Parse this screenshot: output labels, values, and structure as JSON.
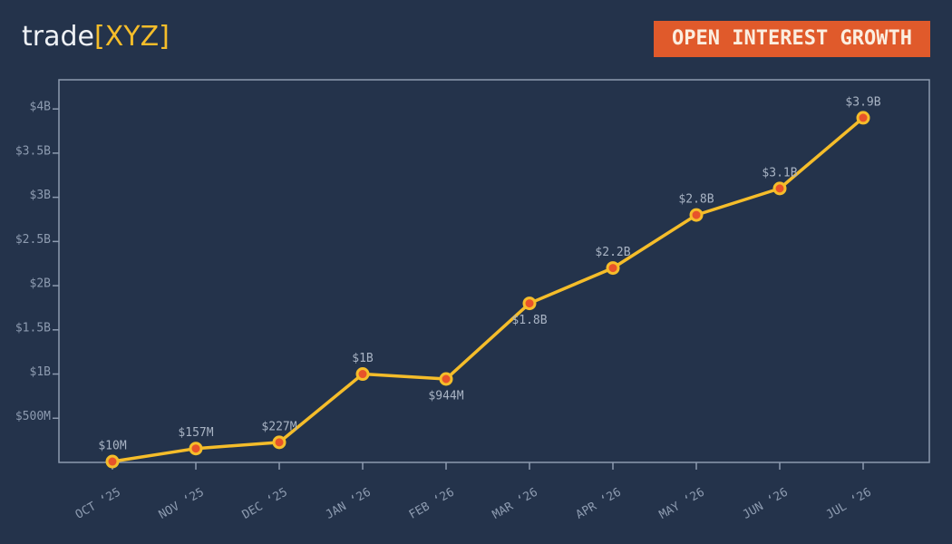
{
  "chart_data": {
    "type": "line",
    "logo": "trade",
    "logo_accent": "[XYZ]",
    "title": "OPEN INTEREST GROWTH",
    "categories": [
      "OCT ‘25",
      "NOV ‘25",
      "DEC ‘25",
      "JAN ‘26",
      "FEB ‘26",
      "MAR ‘26",
      "APR ‘26",
      "MAY ‘26",
      "JUN ‘26",
      "JUL ‘26"
    ],
    "series": [
      {
        "name": "Open Interest",
        "color": "#f5bd2a",
        "marker_color": "#e8532a",
        "values": [
          10000000,
          157000000,
          227000000,
          1000000000,
          944000000,
          1800000000,
          2200000000,
          2800000000,
          3100000000,
          3900000000
        ],
        "value_labels": [
          "$10M",
          "$157M",
          "$227M",
          "$1B",
          "$944M",
          "$1.8B",
          "$2.2B",
          "$2.8B",
          "$3.1B",
          "$3.9B"
        ]
      }
    ],
    "ylim": [
      0,
      4330000000
    ],
    "yticks": [
      {
        "value": 500000000,
        "label": "$500M"
      },
      {
        "value": 1000000000,
        "label": "$1B"
      },
      {
        "value": 1500000000,
        "label": "$1.5B"
      },
      {
        "value": 2000000000,
        "label": "$2B"
      },
      {
        "value": 2500000000,
        "label": "$2.5B"
      },
      {
        "value": 3000000000,
        "label": "$3B"
      },
      {
        "value": 3500000000,
        "label": "$3.5B"
      },
      {
        "value": 4000000000,
        "label": "$4B"
      }
    ],
    "grid": false
  }
}
